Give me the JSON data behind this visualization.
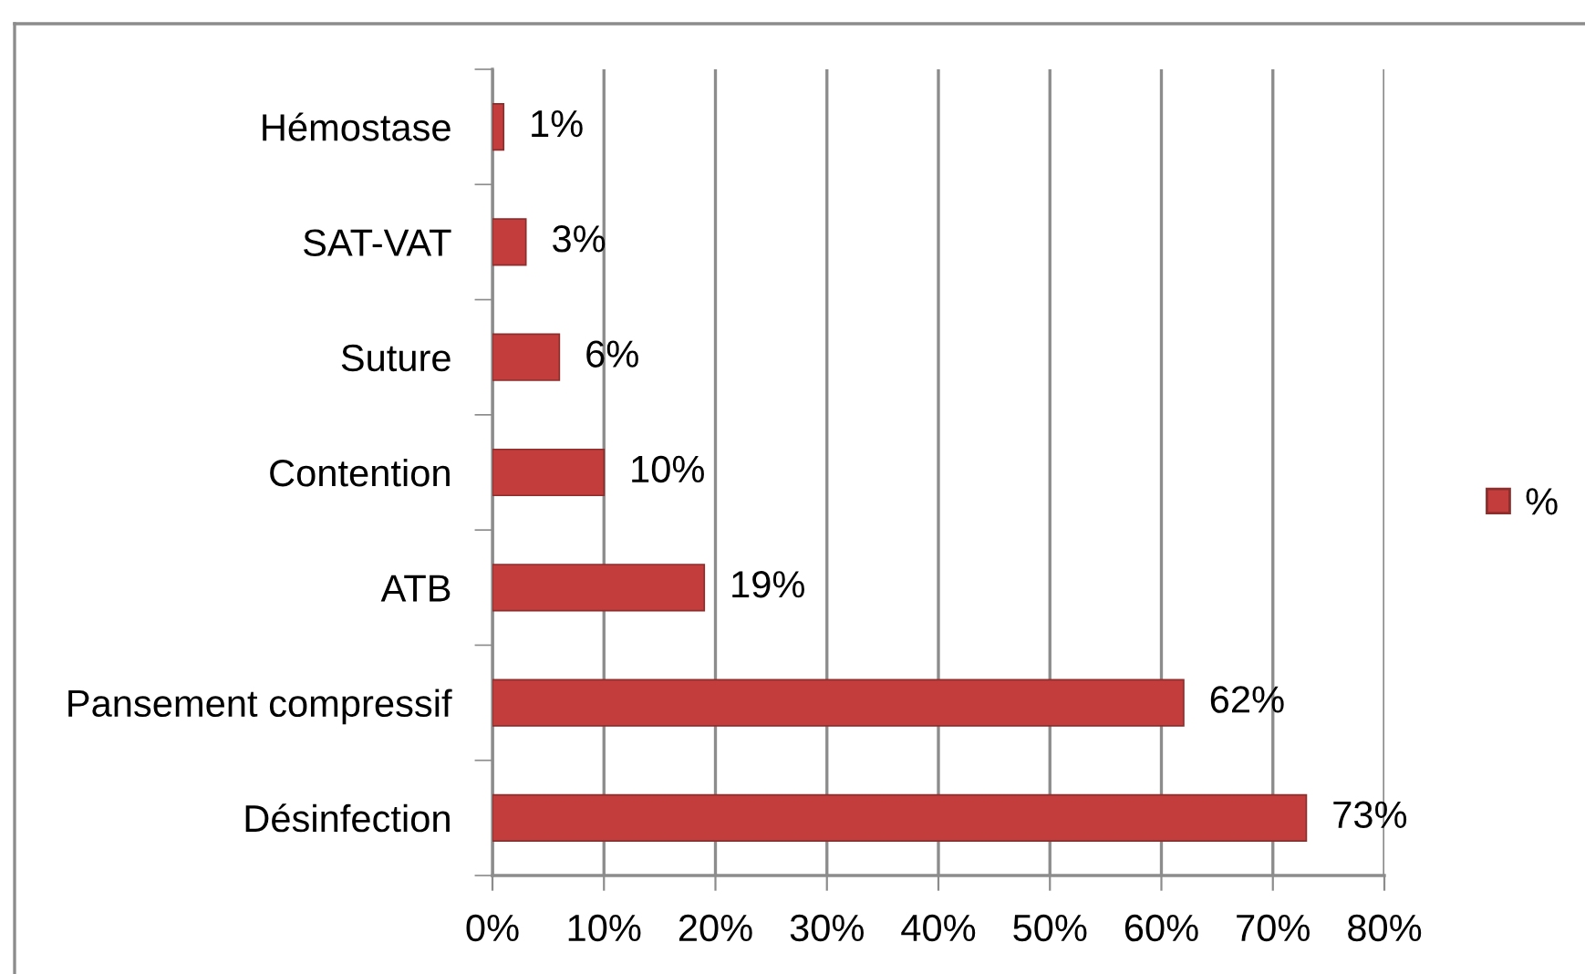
{
  "chart_data": {
    "type": "bar",
    "orientation": "horizontal",
    "categories": [
      "Hémostase",
      "SAT-VAT",
      "Suture",
      "Contention",
      "ATB",
      "Pansement compressif",
      "Désinfection"
    ],
    "series": [
      {
        "name": "%",
        "color": "#c43d3d",
        "values": [
          1,
          3,
          6,
          10,
          19,
          62,
          73
        ],
        "value_labels": [
          "1%",
          "3%",
          "6%",
          "10%",
          "19%",
          "62%",
          "73%"
        ]
      }
    ],
    "xlim": [
      0,
      80
    ],
    "xticks": [
      {
        "value": 0,
        "label": "0%"
      },
      {
        "value": 10,
        "label": "10%"
      },
      {
        "value": 20,
        "label": "20%"
      },
      {
        "value": 30,
        "label": "30%"
      },
      {
        "value": 40,
        "label": "40%"
      },
      {
        "value": 50,
        "label": "50%"
      },
      {
        "value": 60,
        "label": "60%"
      },
      {
        "value": 70,
        "label": "70%"
      },
      {
        "value": 80,
        "label": "80%"
      }
    ],
    "grid": "x",
    "legend": "right"
  }
}
